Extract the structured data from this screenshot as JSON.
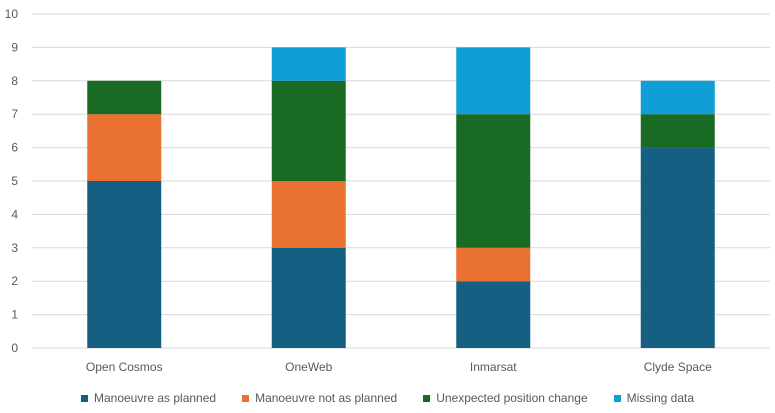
{
  "chart_data": {
    "type": "bar",
    "stacked": true,
    "categories": [
      "Open Cosmos",
      "OneWeb",
      "Inmarsat",
      "Clyde Space"
    ],
    "series": [
      {
        "name": "Manoeuvre as planned",
        "color": "#156082",
        "values": [
          5,
          3,
          2,
          6
        ]
      },
      {
        "name": "Manoeuvre not as planned",
        "color": "#E97132",
        "values": [
          2,
          2,
          1,
          0
        ]
      },
      {
        "name": "Unexpected position change",
        "color": "#196B24",
        "values": [
          1,
          3,
          4,
          1
        ]
      },
      {
        "name": "Missing data",
        "color": "#0F9ED5",
        "values": [
          0,
          1,
          2,
          1
        ]
      }
    ],
    "ylim": [
      0,
      10
    ],
    "yticks": [
      "0",
      "1",
      "2",
      "3",
      "4",
      "5",
      "6",
      "7",
      "8",
      "9",
      "10"
    ],
    "grid": true,
    "legend_position": "bottom"
  }
}
